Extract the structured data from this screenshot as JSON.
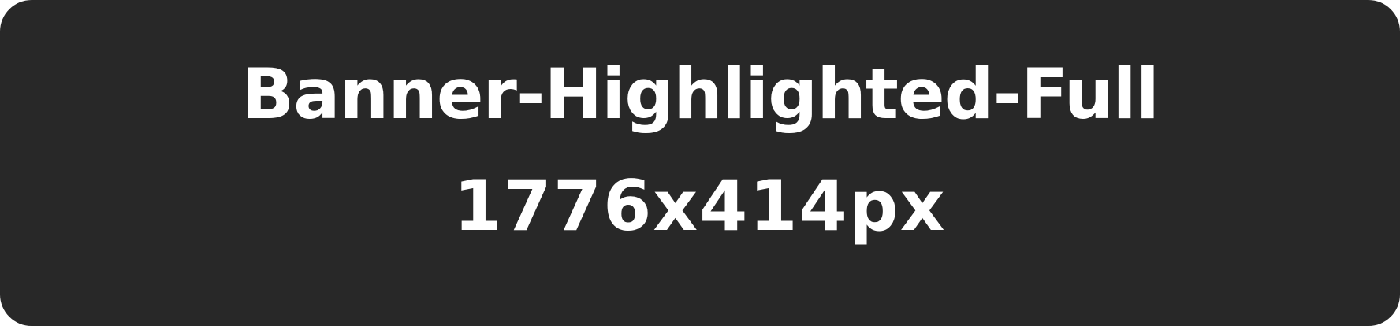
{
  "banner": {
    "title": "Banner-Highlighted-Full",
    "dimensions": "1776x414px",
    "background_color": "#282828",
    "text_color": "#ffffff"
  }
}
